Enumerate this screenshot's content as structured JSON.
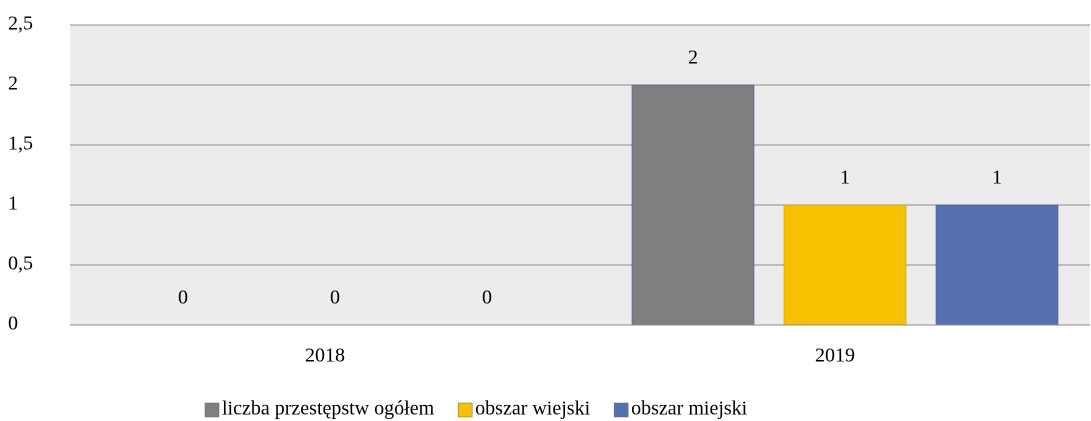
{
  "chart_data": {
    "type": "bar",
    "categories": [
      "2018",
      "2019"
    ],
    "series": [
      {
        "name": "liczba przestępstw ogółem",
        "color": "#7f7f7f",
        "values": [
          0,
          2
        ]
      },
      {
        "name": "obszar wiejski",
        "color": "#f5c100",
        "values": [
          0,
          1
        ]
      },
      {
        "name": "obszar miejski",
        "color": "#5470b0",
        "values": [
          0,
          1
        ]
      }
    ],
    "ylim": [
      0,
      2.5
    ],
    "yticks": [
      0,
      {
        "value": 0.5,
        "label": "0,5"
      },
      1,
      {
        "value": 1.5,
        "label": "1,5"
      },
      2,
      {
        "value": 2.5,
        "label": "2,5"
      }
    ],
    "grid": true,
    "legend": "bottom"
  }
}
